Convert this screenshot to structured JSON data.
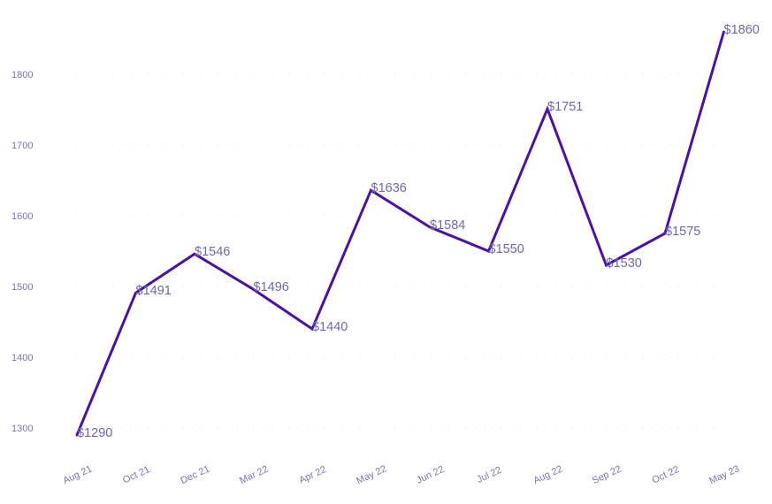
{
  "chart_data": {
    "type": "line",
    "title": "",
    "xlabel": "",
    "ylabel": "",
    "categories": [
      "Aug 21",
      "Oct 21",
      "Dec 21",
      "Mar 22",
      "Apr 22",
      "May 22",
      "Jun 22",
      "Jul 22",
      "Aug 22",
      "Sep 22",
      "Oct 22",
      "May 23"
    ],
    "yticks": [
      1300,
      1400,
      1500,
      1600,
      1700,
      1800
    ],
    "ylim": [
      1250,
      1880
    ],
    "grid": "dotted-light",
    "series": [
      {
        "values": [
          1290,
          1491,
          1546,
          1496,
          1440,
          1636,
          1584,
          1550,
          1751,
          1530,
          1575,
          1860
        ],
        "data_labels": [
          "$1290",
          "$1491",
          "$1546",
          "$1496",
          "$1440",
          "$1636",
          "$1584",
          "$1550",
          "$1751",
          "$1530",
          "$1575",
          "$1860"
        ],
        "color": "#4a12a6"
      }
    ],
    "label_color": "#6e6aa8",
    "tick_color": "#7a76b6"
  }
}
